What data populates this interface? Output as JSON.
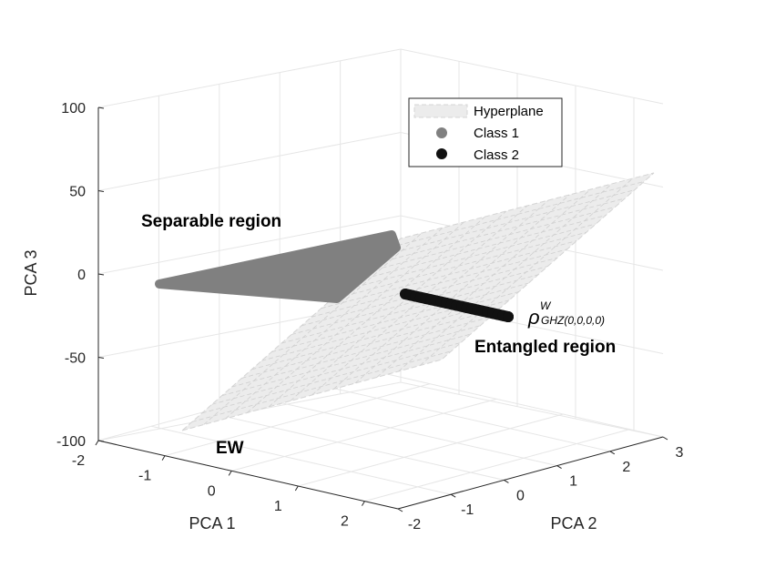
{
  "chart_data": {
    "type": "scatter",
    "view": "3d",
    "grid": "on",
    "axes": {
      "x": {
        "label": "PCA 1",
        "ticks": [
          "-2",
          "-1",
          "0",
          "1",
          "2"
        ],
        "lim": [
          -2,
          2.5
        ]
      },
      "y": {
        "label": "PCA 2",
        "ticks": [
          "-2",
          "-1",
          "0",
          "1",
          "2",
          "3"
        ],
        "lim": [
          -2,
          3
        ]
      },
      "z": {
        "label": "PCA 3",
        "ticks": [
          "100",
          "50",
          "0",
          "-50",
          "-100"
        ],
        "lim": [
          -100,
          100
        ]
      }
    },
    "legend": {
      "placement": "top-right",
      "entries": [
        "Hyperplane",
        "Class 1",
        "Class 2"
      ]
    },
    "series": [
      {
        "name": "Hyperplane",
        "kind": "surface",
        "color": "#eaeaea",
        "edge_color": "#cfcfcf"
      },
      {
        "name": "Class 1",
        "kind": "points",
        "color": "#808080",
        "region": "Separable region"
      },
      {
        "name": "Class 2",
        "kind": "points",
        "color": "#111111",
        "region": "Entangled region"
      }
    ],
    "annotations": [
      {
        "id": "separable",
        "text": "Separable region"
      },
      {
        "id": "entangled",
        "text": "Entangled region"
      },
      {
        "id": "ew",
        "text": "EW"
      },
      {
        "id": "rho",
        "symbol": "ρ",
        "superscript": "W",
        "subscript": "GHZ(0,0,0,0)"
      }
    ]
  }
}
